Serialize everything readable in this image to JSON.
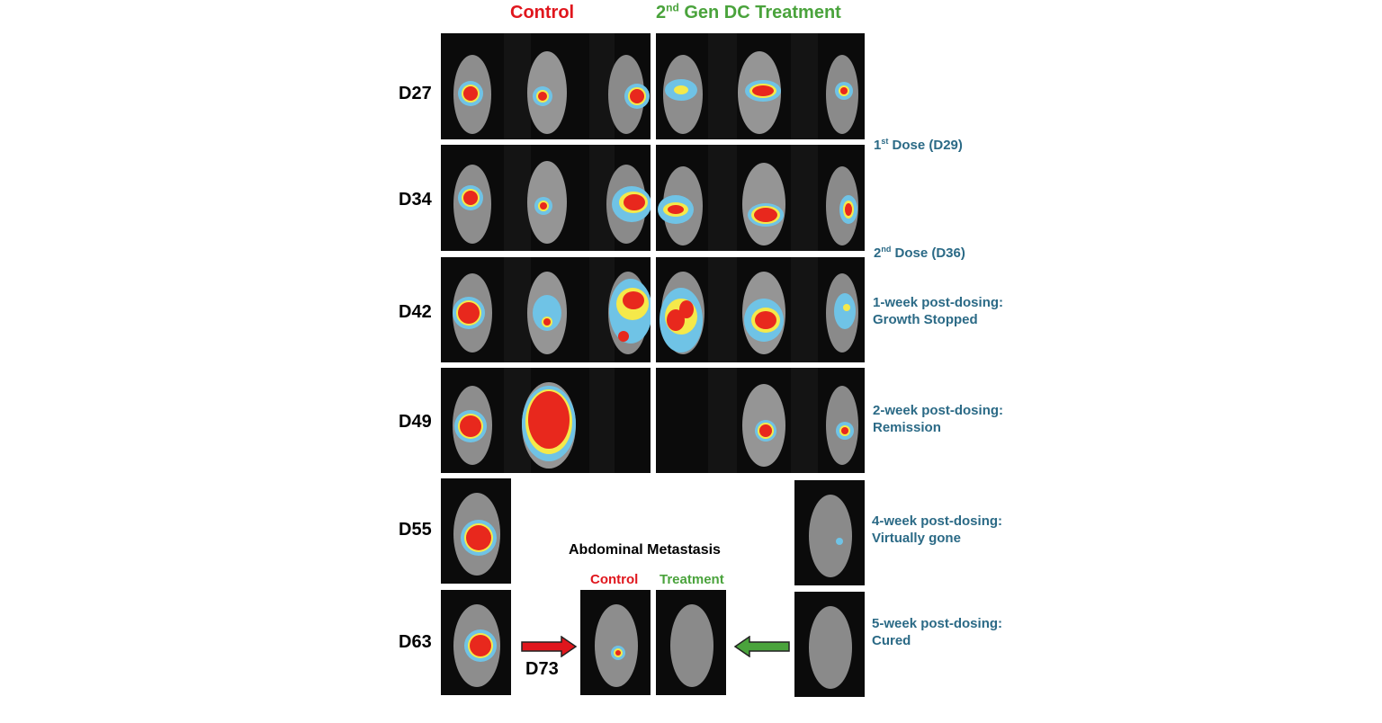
{
  "headers": {
    "control": "Control",
    "treatment_ord": "2",
    "treatment_sup": "nd",
    "treatment_rest": " Gen DC Treatment"
  },
  "colors": {
    "control": "#e0161d",
    "treatment": "#4aa33c",
    "note": "#2b6a86"
  },
  "days": [
    "D27",
    "D34",
    "D42",
    "D49",
    "D55",
    "D63"
  ],
  "notes": {
    "dose1_ord": "1",
    "dose1_sup": "st",
    "dose1_rest": " Dose (D29)",
    "dose2_ord": "2",
    "dose2_sup": "nd",
    "dose2_rest": " Dose (D36)",
    "wk1_line1": "1-week post-dosing:",
    "wk1_line2": "Growth Stopped",
    "wk2_line1": "2-week post-dosing:",
    "wk2_line2": "Remission",
    "wk4_line1": "4-week post-dosing:",
    "wk4_line2": "Virtually gone",
    "wk5_line1": "5-week post-dosing:",
    "wk5_line2": "Cured"
  },
  "metastasis": {
    "title": "Abdominal Metastasis",
    "control_label": "Control",
    "treatment_label": "Treatment",
    "day_label": "D73"
  }
}
